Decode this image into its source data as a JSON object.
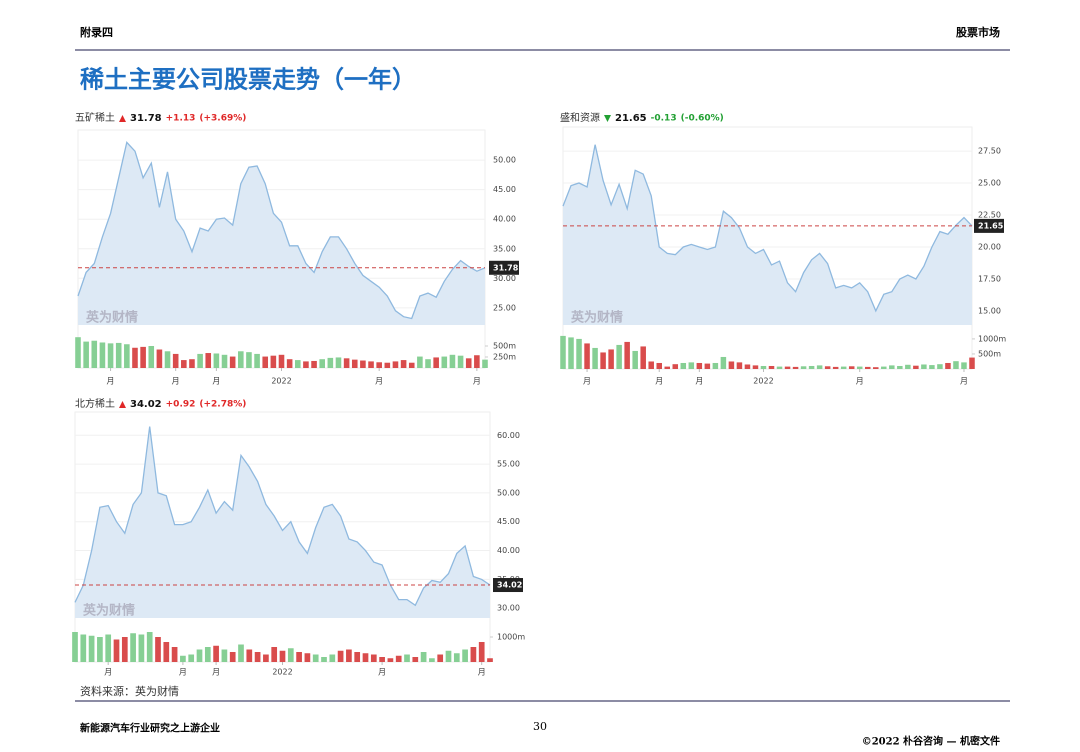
{
  "header": {
    "left": "附录四",
    "right": "股票市场"
  },
  "title": "稀土主要公司股票走势（一年）",
  "watermark": "英为财情",
  "chart_data": [
    {
      "type": "line",
      "name": "五矿稀土",
      "last": {
        "value": 31.78,
        "label": "31.78"
      },
      "change": "+1.13",
      "change_pct": "(+3.69%)",
      "change_color": "#e02828",
      "color": "#8fb9df",
      "fill": "#dde9f5",
      "values": [
        27,
        31,
        32.5,
        37,
        41,
        47,
        53,
        51.5,
        47,
        49.5,
        42,
        48,
        40,
        38,
        34.5,
        38.5,
        38,
        40,
        40.2,
        39,
        46,
        48.8,
        49,
        46,
        41,
        39.5,
        35.5,
        35.5,
        32.5,
        31,
        34.5,
        37,
        37,
        35,
        32.5,
        30.5,
        29.5,
        28.5,
        27,
        24.5,
        23.5,
        23.2,
        27,
        27.5,
        26.8,
        29.5,
        31.5,
        33,
        32,
        31.2,
        31.78
      ],
      "ylim": [
        22.1,
        53.4
      ],
      "yticks": [
        {
          "value": 25,
          "label": "25.00"
        },
        {
          "value": 30,
          "label": "30.00"
        },
        {
          "value": 35,
          "label": "35.00"
        },
        {
          "value": 40,
          "label": "40.00"
        },
        {
          "value": 45,
          "label": "45.00"
        },
        {
          "value": 50,
          "label": "50.00"
        }
      ],
      "xticks": [
        {
          "value": 4,
          "label": "月"
        },
        {
          "value": 12,
          "label": "月"
        },
        {
          "value": 17,
          "label": "月"
        },
        {
          "value": 25,
          "label": "2022"
        },
        {
          "value": 37,
          "label": "月"
        },
        {
          "value": 49,
          "label": "月"
        }
      ],
      "grid": true,
      "volume": {
        "values": [
          700,
          600,
          620,
          580,
          560,
          570,
          540,
          460,
          480,
          500,
          420,
          380,
          320,
          180,
          200,
          320,
          340,
          330,
          300,
          260,
          380,
          360,
          320,
          260,
          280,
          300,
          200,
          180,
          150,
          160,
          200,
          230,
          240,
          220,
          190,
          170,
          150,
          130,
          120,
          150,
          180,
          120,
          260,
          200,
          240,
          260,
          300,
          280,
          220,
          290,
          190
        ],
        "ylim": [
          0,
          750
        ],
        "yticks": [
          {
            "value": 250,
            "label": "250m"
          },
          {
            "value": 500,
            "label": "500m"
          }
        ],
        "up_color": "#86cf94",
        "down_color": "#d94c4c"
      }
    },
    {
      "type": "line",
      "name": "盛和资源",
      "last": {
        "value": 21.65,
        "label": "21.65"
      },
      "change": "-0.13",
      "change_pct": "(-0.60%)",
      "change_color": "#22a033",
      "color": "#8fb9df",
      "fill": "#dde9f5",
      "values": [
        23.2,
        24.8,
        25,
        24.7,
        28,
        25.2,
        23.3,
        24.9,
        23,
        26,
        25.7,
        24,
        20,
        19.5,
        19.4,
        20,
        20.2,
        20,
        19.8,
        20,
        22.8,
        22.3,
        21.5,
        20,
        19.5,
        19.8,
        18.6,
        18.9,
        17.2,
        16.5,
        18,
        19,
        19.5,
        18.7,
        16.8,
        17,
        16.8,
        17.2,
        16.5,
        15,
        16.3,
        16.5,
        17.5,
        17.8,
        17.5,
        18.5,
        20,
        21.2,
        21,
        21.7,
        22.3,
        21.65
      ],
      "ylim": [
        13.9,
        28.6
      ],
      "yticks": [
        {
          "value": 15,
          "label": "15.00"
        },
        {
          "value": 17.5,
          "label": "17.50"
        },
        {
          "value": 20,
          "label": "20.00"
        },
        {
          "value": 22.5,
          "label": "22.50"
        },
        {
          "value": 25,
          "label": "25.00"
        },
        {
          "value": 27.5,
          "label": "27.50"
        }
      ],
      "xticks": [
        {
          "value": 3,
          "label": "月"
        },
        {
          "value": 12,
          "label": "月"
        },
        {
          "value": 17,
          "label": "月"
        },
        {
          "value": 25,
          "label": "2022"
        },
        {
          "value": 37,
          "label": "月"
        },
        {
          "value": 50,
          "label": "月"
        }
      ],
      "grid": true,
      "volume": {
        "values": [
          1100,
          1050,
          1000,
          850,
          700,
          550,
          650,
          800,
          900,
          600,
          750,
          250,
          200,
          80,
          160,
          200,
          220,
          200,
          180,
          200,
          400,
          250,
          220,
          150,
          120,
          100,
          100,
          80,
          80,
          70,
          90,
          100,
          120,
          90,
          70,
          80,
          90,
          80,
          70,
          60,
          80,
          120,
          100,
          140,
          110,
          150,
          130,
          160,
          200,
          260,
          220,
          380
        ],
        "ylim": [
          0,
          1130
        ],
        "yticks": [
          {
            "value": 500,
            "label": "500m"
          },
          {
            "value": 1000,
            "label": "1000m"
          }
        ],
        "up_color": "#86cf94",
        "down_color": "#d94c4c"
      }
    },
    {
      "type": "line",
      "name": "北方稀土",
      "last": {
        "value": 34.02,
        "label": "34.02"
      },
      "change": "+0.92",
      "change_pct": "(+2.78%)",
      "change_color": "#e02828",
      "color": "#8fb9df",
      "fill": "#dde9f5",
      "values": [
        31,
        34,
        40,
        47.5,
        47.8,
        45,
        43,
        48,
        50,
        61.5,
        50,
        49.5,
        44.5,
        44.5,
        45,
        47.5,
        50.5,
        46.5,
        48.5,
        47,
        56.5,
        54.5,
        52,
        48,
        46,
        43.5,
        45,
        41.5,
        39.5,
        44,
        47.5,
        48,
        46,
        42,
        41.5,
        40,
        38,
        37.5,
        34,
        31.5,
        31.5,
        30.5,
        33.5,
        34.8,
        34.5,
        36,
        39.5,
        40.8,
        35.5,
        35,
        34.02
      ],
      "ylim": [
        28.3,
        62.3
      ],
      "yticks": [
        {
          "value": 30,
          "label": "30.00"
        },
        {
          "value": 35,
          "label": "35.00"
        },
        {
          "value": 40,
          "label": "40.00"
        },
        {
          "value": 45,
          "label": "45.00"
        },
        {
          "value": 50,
          "label": "50.00"
        },
        {
          "value": 55,
          "label": "55.00"
        },
        {
          "value": 60,
          "label": "60.00"
        }
      ],
      "xticks": [
        {
          "value": 4,
          "label": "月"
        },
        {
          "value": 13,
          "label": "月"
        },
        {
          "value": 17,
          "label": "月"
        },
        {
          "value": 25,
          "label": "2022"
        },
        {
          "value": 37,
          "label": "月"
        },
        {
          "value": 49,
          "label": "月"
        }
      ],
      "grid": true,
      "volume": {
        "values": [
          1200,
          1100,
          1050,
          1000,
          1100,
          900,
          1000,
          1150,
          1100,
          1200,
          1000,
          800,
          600,
          250,
          300,
          500,
          600,
          650,
          500,
          400,
          700,
          500,
          400,
          300,
          600,
          450,
          550,
          400,
          350,
          300,
          200,
          300,
          450,
          500,
          400,
          350,
          300,
          200,
          150,
          250,
          300,
          200,
          400,
          150,
          300,
          450,
          350,
          500,
          600,
          800,
          150
        ],
        "ylim": [
          0,
          1480
        ],
        "yticks": [
          {
            "value": 1000,
            "label": "1000m"
          }
        ],
        "up_color": "#86cf94",
        "down_color": "#d94c4c"
      }
    }
  ],
  "source": "资料来源：英为财情",
  "footer": {
    "left": "新能源汽车行业研究之上游企业",
    "page": "30",
    "right": "©2022 朴谷咨询 — 机密文件"
  }
}
